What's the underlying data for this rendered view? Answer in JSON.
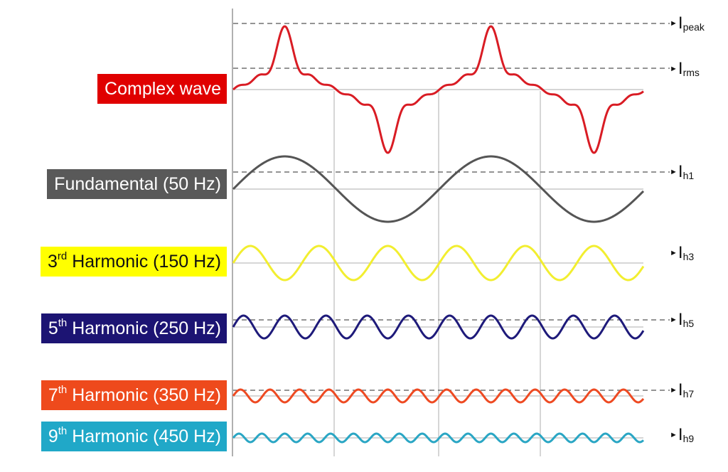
{
  "waves": [
    {
      "key": "complex",
      "label": "Complex wave",
      "ordinal": "",
      "ordinal_sup": "",
      "bg": "#e00000",
      "text_color": "#ffffff",
      "stroke": "#d91c24"
    },
    {
      "key": "h1",
      "label": "Fundamental (50 Hz)",
      "ordinal": "",
      "ordinal_sup": "",
      "bg": "#595959",
      "text_color": "#ffffff",
      "stroke": "#555555"
    },
    {
      "key": "h3",
      "label": "Harmonic (150 Hz)",
      "ordinal": "3",
      "ordinal_sup": "rd",
      "bg": "#ffff00",
      "text_color": "#111111",
      "stroke": "#f2ee30"
    },
    {
      "key": "h5",
      "label": "Harmonic (250 Hz)",
      "ordinal": "5",
      "ordinal_sup": "th",
      "bg": "#1c1473",
      "text_color": "#ffffff",
      "stroke": "#1e1a7a"
    },
    {
      "key": "h7",
      "label": "Harmonic (350 Hz)",
      "ordinal": "7",
      "ordinal_sup": "th",
      "bg": "#ee4a1c",
      "text_color": "#ffffff",
      "stroke": "#ee4a22"
    },
    {
      "key": "h9",
      "label": "Harmonic (450 Hz)",
      "ordinal": "9",
      "ordinal_sup": "th",
      "bg": "#20a8c8",
      "text_color": "#ffffff",
      "stroke": "#2aa6c4"
    }
  ],
  "markers": {
    "peak": {
      "main": "I",
      "sub": "peak"
    },
    "rms": {
      "main": "I",
      "sub": "rms"
    },
    "h1": {
      "main": "I",
      "sub": "h1"
    },
    "h3": {
      "main": "I",
      "sub": "h3"
    },
    "h5": {
      "main": "I",
      "sub": "h5"
    },
    "h7": {
      "main": "I",
      "sub": "h7"
    },
    "h9": {
      "main": "I",
      "sub": "h9"
    }
  },
  "colors": {
    "gridline": "#c8c8c8",
    "axis": "#b0b0b0",
    "dashed": "#555555"
  }
}
